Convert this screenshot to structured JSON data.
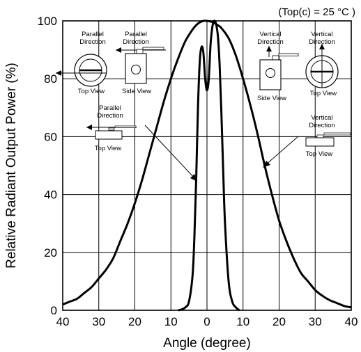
{
  "condition": "(Top(c) = 25 °C )",
  "chart_data": {
    "type": "line",
    "xlabel": "Angle (degree)",
    "ylabel": "Relative Radiant Output Power (%)",
    "xlim": [
      -40,
      40
    ],
    "ylim": [
      0,
      100
    ],
    "x_ticks": [
      -40,
      -30,
      -20,
      -10,
      0,
      10,
      20,
      30,
      40
    ],
    "x_tick_labels": [
      "40",
      "30",
      "20",
      "10",
      "0",
      "10",
      "20",
      "30",
      "40"
    ],
    "y_ticks": [
      0,
      20,
      40,
      60,
      80,
      100
    ],
    "y_tick_labels": [
      "0",
      "20",
      "40",
      "60",
      "80",
      "100"
    ],
    "grid": true,
    "series": [
      {
        "x": [
          -40,
          -38,
          -36,
          -34,
          -32,
          -30,
          -28,
          -26,
          -24,
          -22,
          -20,
          -18,
          -16,
          -14,
          -12,
          -10,
          -8,
          -6,
          -4,
          -3,
          -2,
          -1,
          0,
          1,
          2,
          3,
          4,
          6,
          8,
          10,
          12,
          14,
          16,
          18,
          20,
          22,
          24,
          26,
          28,
          30,
          32,
          34,
          36,
          38,
          40
        ],
        "values": [
          2,
          3,
          4,
          6,
          8,
          11,
          14,
          18,
          24,
          30,
          37,
          45,
          54,
          63,
          72,
          80,
          87,
          93,
          97,
          98.5,
          99.5,
          100,
          100,
          99.8,
          99.3,
          98.5,
          97.5,
          94,
          88,
          80,
          71,
          61,
          50,
          40,
          31,
          24,
          18,
          13,
          10,
          7,
          5,
          3.5,
          2.5,
          1.5,
          1
        ]
      },
      {
        "x": [
          -8,
          -7,
          -6,
          -5,
          -4,
          -3.5,
          -3,
          -2.5,
          -2,
          -1.5,
          -1,
          -0.5,
          0,
          0.5,
          1,
          1.5,
          2,
          2.5,
          3,
          3.5,
          4,
          4.5,
          5,
          6,
          7,
          8,
          9
        ],
        "values": [
          0,
          0.3,
          1,
          3,
          12,
          25,
          45,
          70,
          86,
          91,
          89,
          80,
          76,
          80,
          92,
          98,
          100,
          99,
          95,
          85,
          68,
          48,
          30,
          10,
          3,
          1,
          0
        ]
      }
    ],
    "insets": {
      "top_left_parallel": {
        "title": "Parallel\nDirection",
        "view": "Top View"
      },
      "side_parallel": {
        "title": "Parallel\nDirection",
        "view": "Side View"
      },
      "lower_left_parallel": {
        "title": "Parallel\nDirection",
        "view": "Top View"
      },
      "side_vertical": {
        "title": "Vertical\nDirection",
        "view": "Side View"
      },
      "top_right_vertical": {
        "title": "Vertical\nDirection",
        "view": "Top View"
      },
      "lower_right_vertical": {
        "title": "Vertical\nDirection",
        "view": "Top View"
      }
    }
  }
}
